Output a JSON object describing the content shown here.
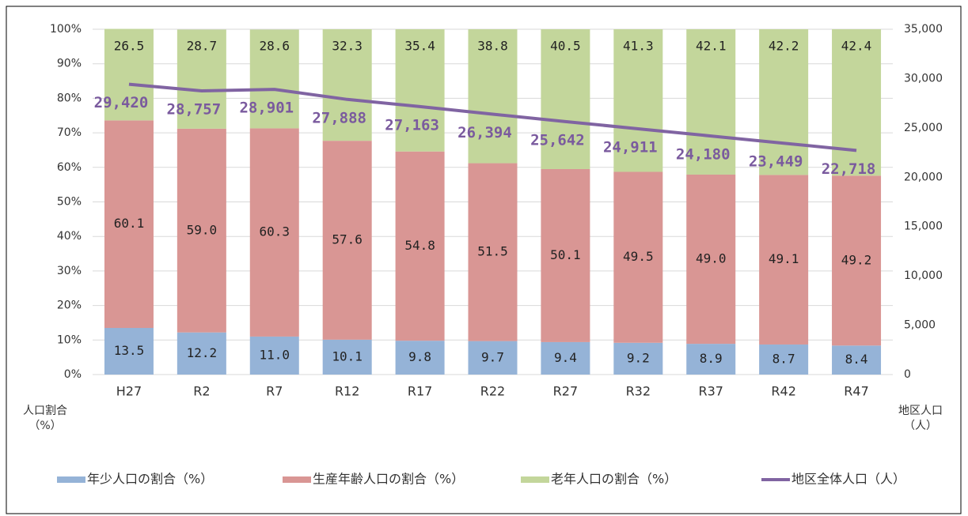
{
  "chart_data": {
    "type": "stacked_bar_line",
    "categories": [
      "H27",
      "R2",
      "R7",
      "R12",
      "R17",
      "R22",
      "R27",
      "R32",
      "R37",
      "R42",
      "R47"
    ],
    "series": [
      {
        "name": "年少人口の割合（%）",
        "color": "#95b3d7",
        "type": "bar",
        "values": [
          13.5,
          12.2,
          11.0,
          10.1,
          9.8,
          9.7,
          9.4,
          9.2,
          8.9,
          8.7,
          8.4
        ],
        "value_labels": [
          "13.5",
          "12.2",
          "11.0",
          "10.1",
          "9.8",
          "9.7",
          "9.4",
          "9.2",
          "8.9",
          "8.7",
          "8.4"
        ]
      },
      {
        "name": "生産年齢人口の割合（%）",
        "color": "#d99694",
        "type": "bar",
        "values": [
          60.1,
          59.0,
          60.3,
          57.6,
          54.8,
          51.5,
          50.1,
          49.5,
          49.0,
          49.1,
          49.2
        ],
        "value_labels": [
          "60.1",
          "59.0",
          "60.3",
          "57.6",
          "54.8",
          "51.5",
          "50.1",
          "49.5",
          "49.0",
          "49.1",
          "49.2"
        ]
      },
      {
        "name": "老年人口の割合（%）",
        "color": "#c3d69b",
        "type": "bar",
        "values": [
          26.5,
          28.7,
          28.6,
          32.3,
          35.4,
          38.8,
          40.5,
          41.3,
          42.1,
          42.2,
          42.4
        ],
        "value_labels": [
          "26.5",
          "28.7",
          "28.6",
          "32.3",
          "35.4",
          "38.8",
          "40.5",
          "41.3",
          "42.1",
          "42.2",
          "42.4"
        ]
      },
      {
        "name": "地区全体人口（人）",
        "color": "#8064a2",
        "type": "line",
        "axis": "y2",
        "values": [
          29420,
          28757,
          28901,
          27888,
          27163,
          26394,
          25642,
          24911,
          24180,
          23449,
          22718
        ],
        "value_labels": [
          "29,420",
          "28,757",
          "28,901",
          "27,888",
          "27,163",
          "26,394",
          "25,642",
          "24,911",
          "24,180",
          "23,449",
          "22,718"
        ]
      }
    ],
    "ylabel": [
      "人口割合",
      "（%）"
    ],
    "y2label": [
      "地区人口",
      "（人）"
    ],
    "ylim": [
      0,
      100
    ],
    "yticks": [
      {
        "value": 0,
        "label": "0%"
      },
      {
        "value": 10,
        "label": "10%"
      },
      {
        "value": 20,
        "label": "20%"
      },
      {
        "value": 30,
        "label": "30%"
      },
      {
        "value": 40,
        "label": "40%"
      },
      {
        "value": 50,
        "label": "50%"
      },
      {
        "value": 60,
        "label": "60%"
      },
      {
        "value": 70,
        "label": "70%"
      },
      {
        "value": 80,
        "label": "80%"
      },
      {
        "value": 90,
        "label": "90%"
      },
      {
        "value": 100,
        "label": "100%"
      }
    ],
    "y2lim": [
      0,
      35000
    ],
    "y2ticks": [
      0,
      {
        "value": 5000,
        "label": "5,000"
      },
      {
        "value": 10000,
        "label": "10,000"
      },
      {
        "value": 15000,
        "label": "15,000"
      },
      {
        "value": 20000,
        "label": "20,000"
      },
      {
        "value": 25000,
        "label": "25,000"
      },
      {
        "value": 30000,
        "label": "30,000"
      },
      {
        "value": 35000,
        "label": "35,000"
      }
    ],
    "grid": true,
    "legend": "bottom"
  }
}
